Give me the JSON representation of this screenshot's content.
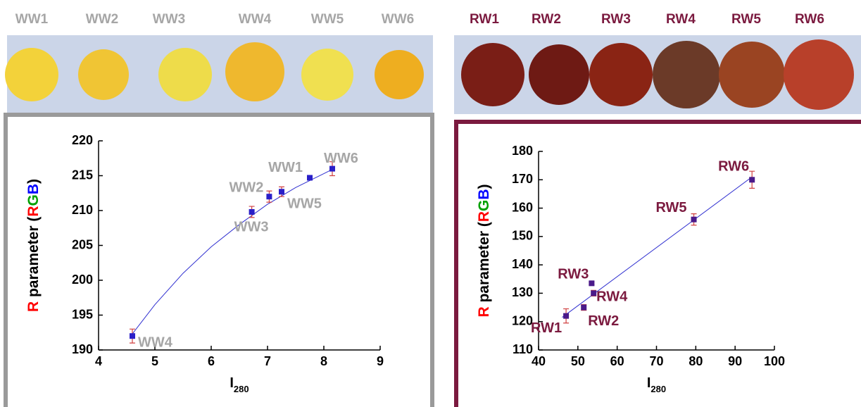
{
  "photos_left": {
    "labels": [
      "WW1",
      "WW2",
      "WW3",
      "WW4",
      "WW5",
      "WW6"
    ],
    "color": "#a6a6a6"
  },
  "photos_right": {
    "labels": [
      "RW1",
      "RW2",
      "RW3",
      "RW4",
      "RW5",
      "RW6"
    ],
    "color": "#7b1a3f"
  },
  "chart_data": [
    {
      "type": "scatter",
      "xlabel": "I",
      "xlabel_sub": "280",
      "ylabel": [
        {
          "text": "R",
          "color": "#ff0000"
        },
        {
          "text": " parameter (",
          "color": "#000000"
        },
        {
          "text": "R",
          "color": "#ff0000"
        },
        {
          "text": "G",
          "color": "#00a000"
        },
        {
          "text": "B",
          "color": "#0000ff"
        },
        {
          "text": ")",
          "color": "#000000"
        }
      ],
      "xlim": [
        4,
        9
      ],
      "xticks": [
        4,
        5,
        6,
        7,
        8,
        9
      ],
      "ylim": [
        190,
        220
      ],
      "yticks": [
        190,
        195,
        200,
        205,
        210,
        215,
        220
      ],
      "points": {
        "x": [
          4.6,
          6.72,
          7.03,
          7.25,
          7.75,
          8.15
        ],
        "y": [
          192,
          209.8,
          212,
          212.7,
          214.7,
          216
        ],
        "error": [
          1,
          0.8,
          0.8,
          0.7,
          0.2,
          1
        ],
        "labels": [
          "WW4",
          "WW3",
          "WW2",
          "WW5",
          "WW1",
          "WW6"
        ]
      },
      "marker_color": "#2a1fc8",
      "error_color": "#d04040",
      "label_color": "#a6a6a6",
      "fit": {
        "x": [
          4.6,
          5,
          5.5,
          6,
          6.5,
          7,
          7.5,
          8,
          8.15
        ],
        "y": [
          192.3,
          196.5,
          201,
          204.8,
          208,
          210.9,
          213.3,
          215.3,
          215.9
        ],
        "color": "#3030d0"
      }
    },
    {
      "type": "scatter",
      "xlabel": "I",
      "xlabel_sub": "280",
      "ylabel": [
        {
          "text": "R",
          "color": "#ff0000"
        },
        {
          "text": " parameter (",
          "color": "#000000"
        },
        {
          "text": "R",
          "color": "#ff0000"
        },
        {
          "text": "G",
          "color": "#00a000"
        },
        {
          "text": "B",
          "color": "#0000ff"
        },
        {
          "text": ")",
          "color": "#000000"
        }
      ],
      "xlim": [
        40,
        100
      ],
      "xticks": [
        40,
        50,
        60,
        70,
        80,
        90,
        100
      ],
      "ylim": [
        110,
        180
      ],
      "yticks": [
        110,
        120,
        130,
        140,
        150,
        160,
        170,
        180
      ],
      "points": {
        "x": [
          47,
          51.5,
          53.5,
          54,
          79.5,
          94.3
        ],
        "y": [
          122,
          125,
          133.5,
          130,
          156,
          170
        ],
        "error": [
          2.5,
          1,
          0.5,
          1,
          2,
          3
        ],
        "labels": [
          "RW1",
          "RW2",
          "RW3",
          "RW4",
          "RW5",
          "RW6"
        ]
      },
      "marker_color": "#4a1a8a",
      "error_color": "#d04040",
      "label_color": "#7b1a3f",
      "fit": {
        "x": [
          46,
          94.3
        ],
        "y": [
          121.5,
          171
        ],
        "color": "#3030d0"
      }
    }
  ]
}
